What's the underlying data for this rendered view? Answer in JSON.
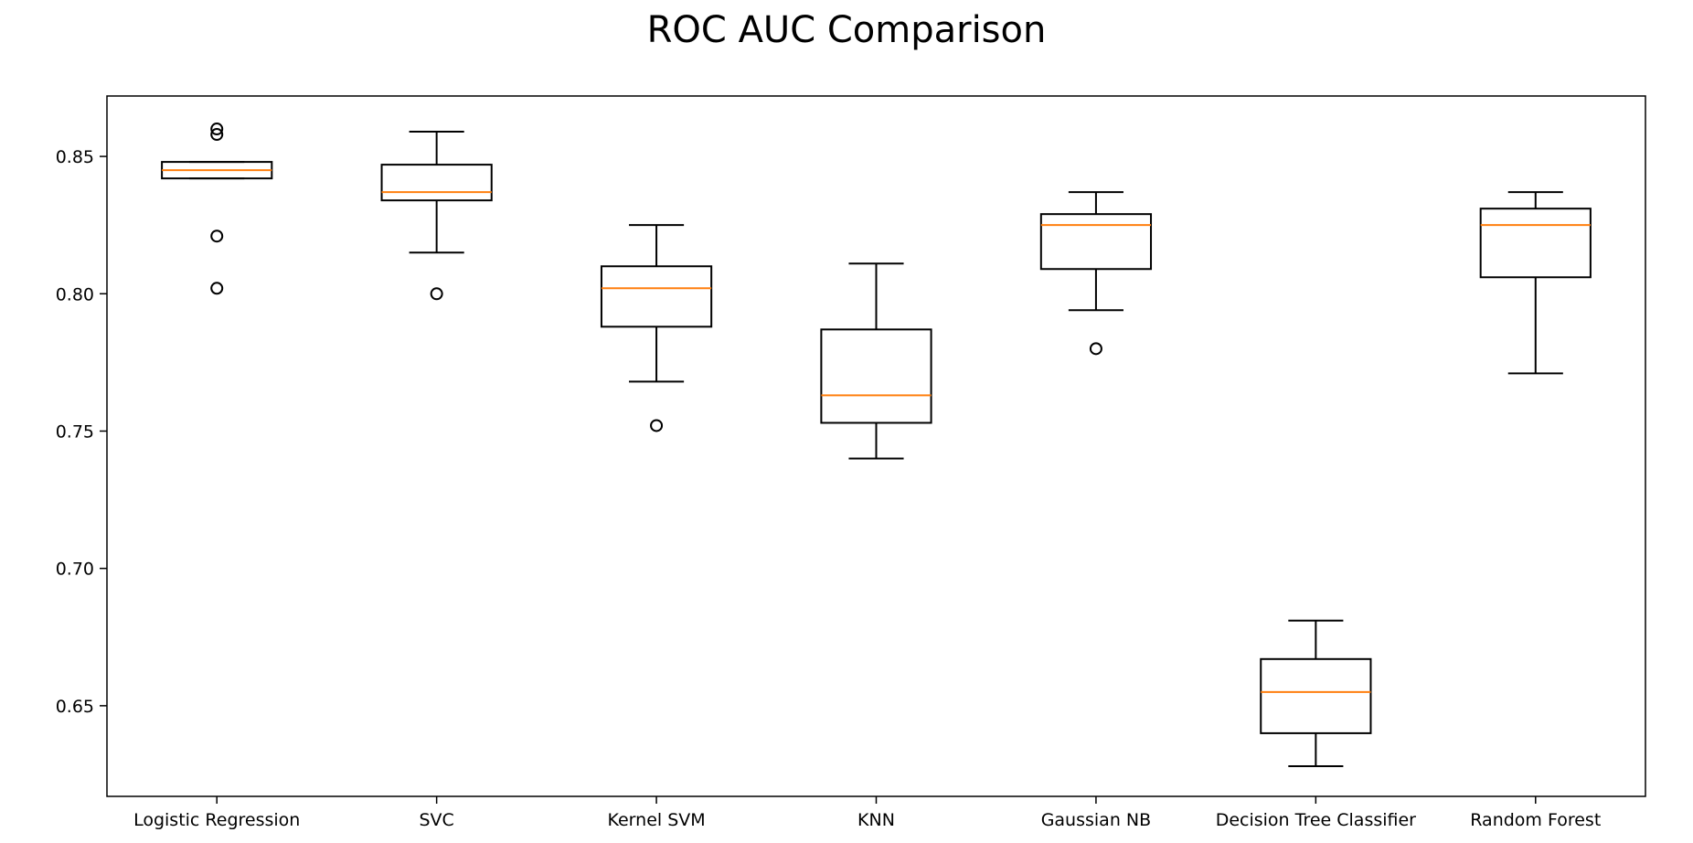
{
  "chart_data": {
    "type": "box",
    "title": "ROC AUC Comparison",
    "xlabel": "",
    "ylabel": "",
    "ylim": [
      0.617,
      0.872
    ],
    "yticks": [
      "0.65",
      "0.70",
      "0.75",
      "0.80",
      "0.85"
    ],
    "grid": false,
    "colors": {
      "box": "#000000",
      "median": "#ff7f0e",
      "background": "#ffffff"
    },
    "categories": [
      "Logistic Regression",
      "SVC",
      "Kernel SVM",
      "KNN",
      "Gaussian NB",
      "Decision Tree Classifier",
      "Random Forest"
    ],
    "boxes": [
      {
        "whisker_low": 0.842,
        "q1": 0.842,
        "median": 0.845,
        "q3": 0.848,
        "whisker_high": 0.848,
        "outliers": [
          0.86,
          0.858,
          0.821,
          0.802
        ]
      },
      {
        "whisker_low": 0.815,
        "q1": 0.834,
        "median": 0.837,
        "q3": 0.847,
        "whisker_high": 0.859,
        "outliers": [
          0.8
        ]
      },
      {
        "whisker_low": 0.768,
        "q1": 0.788,
        "median": 0.802,
        "q3": 0.81,
        "whisker_high": 0.825,
        "outliers": [
          0.752
        ]
      },
      {
        "whisker_low": 0.74,
        "q1": 0.753,
        "median": 0.763,
        "q3": 0.787,
        "whisker_high": 0.811,
        "outliers": []
      },
      {
        "whisker_low": 0.794,
        "q1": 0.809,
        "median": 0.825,
        "q3": 0.829,
        "whisker_high": 0.837,
        "outliers": [
          0.78
        ]
      },
      {
        "whisker_low": 0.628,
        "q1": 0.64,
        "median": 0.655,
        "q3": 0.667,
        "whisker_high": 0.681,
        "outliers": []
      },
      {
        "whisker_low": 0.771,
        "q1": 0.806,
        "median": 0.825,
        "q3": 0.831,
        "whisker_high": 0.837,
        "outliers": []
      }
    ]
  }
}
